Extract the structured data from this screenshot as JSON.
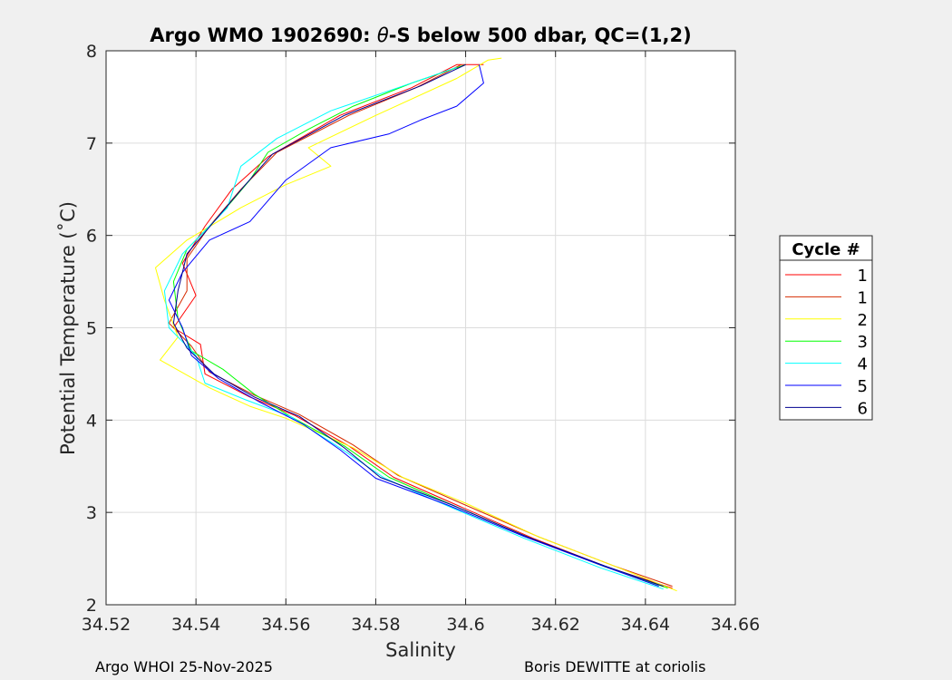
{
  "chart_data": {
    "type": "line",
    "title_prefix": "Argo WMO 1902690: ",
    "title_theta": "θ",
    "title_suffix": "-S below 500 dbar,  QC=(1,2)",
    "xlabel": "Salinity",
    "ylabel": "Potential Temperature (˚C)",
    "xlim": [
      34.52,
      34.66
    ],
    "ylim": [
      2,
      8
    ],
    "xticks": [
      "34.52",
      "34.54",
      "34.56",
      "34.58",
      "34.6",
      "34.62",
      "34.64",
      "34.66"
    ],
    "yticks": [
      "2",
      "3",
      "4",
      "5",
      "6",
      "7",
      "8"
    ],
    "grid": true,
    "legend_title": "Cycle #",
    "legend_placement": "right",
    "series": [
      {
        "name": "1",
        "color": "#ff0000",
        "points": [
          [
            34.646,
            2.18
          ],
          [
            34.632,
            2.4
          ],
          [
            34.615,
            2.72
          ],
          [
            34.598,
            3.08
          ],
          [
            34.584,
            3.38
          ],
          [
            34.574,
            3.72
          ],
          [
            34.562,
            4.05
          ],
          [
            34.552,
            4.25
          ],
          [
            34.542,
            4.5
          ],
          [
            34.541,
            4.82
          ],
          [
            34.535,
            5.0
          ],
          [
            34.54,
            5.35
          ],
          [
            34.537,
            5.7
          ],
          [
            34.542,
            6.1
          ],
          [
            34.548,
            6.5
          ],
          [
            34.556,
            6.85
          ],
          [
            34.572,
            7.3
          ],
          [
            34.588,
            7.6
          ],
          [
            34.598,
            7.85
          ],
          [
            34.604,
            7.85
          ]
        ]
      },
      {
        "name": "1",
        "color": "#d62b00",
        "points": [
          [
            34.646,
            2.2
          ],
          [
            34.633,
            2.42
          ],
          [
            34.616,
            2.74
          ],
          [
            34.599,
            3.1
          ],
          [
            34.585,
            3.4
          ],
          [
            34.575,
            3.73
          ],
          [
            34.563,
            4.06
          ],
          [
            34.553,
            4.27
          ],
          [
            34.543,
            4.52
          ],
          [
            34.539,
            4.8
          ],
          [
            34.534,
            5.05
          ],
          [
            34.538,
            5.4
          ],
          [
            34.538,
            5.75
          ],
          [
            34.543,
            6.1
          ],
          [
            34.55,
            6.5
          ],
          [
            34.558,
            6.9
          ],
          [
            34.574,
            7.3
          ],
          [
            34.589,
            7.6
          ],
          [
            34.599,
            7.85
          ]
        ]
      },
      {
        "name": "2",
        "color": "#ffff00",
        "points": [
          [
            34.647,
            2.15
          ],
          [
            34.633,
            2.42
          ],
          [
            34.616,
            2.74
          ],
          [
            34.6,
            3.1
          ],
          [
            34.586,
            3.38
          ],
          [
            34.575,
            3.7
          ],
          [
            34.56,
            4.02
          ],
          [
            34.552,
            4.15
          ],
          [
            34.543,
            4.35
          ],
          [
            34.532,
            4.65
          ],
          [
            34.536,
            4.9
          ],
          [
            34.533,
            5.3
          ],
          [
            34.531,
            5.65
          ],
          [
            34.538,
            5.95
          ],
          [
            34.55,
            6.3
          ],
          [
            34.56,
            6.55
          ],
          [
            34.57,
            6.75
          ],
          [
            34.565,
            6.95
          ],
          [
            34.58,
            7.3
          ],
          [
            34.598,
            7.7
          ],
          [
            34.605,
            7.9
          ],
          [
            34.608,
            7.92
          ]
        ]
      },
      {
        "name": "3",
        "color": "#00ff00",
        "points": [
          [
            34.645,
            2.18
          ],
          [
            34.631,
            2.41
          ],
          [
            34.614,
            2.73
          ],
          [
            34.597,
            3.08
          ],
          [
            34.583,
            3.38
          ],
          [
            34.573,
            3.72
          ],
          [
            34.561,
            4.04
          ],
          [
            34.553,
            4.28
          ],
          [
            34.546,
            4.55
          ],
          [
            34.539,
            4.75
          ],
          [
            34.536,
            5.1
          ],
          [
            34.535,
            5.5
          ],
          [
            34.538,
            5.85
          ],
          [
            34.545,
            6.2
          ],
          [
            34.552,
            6.6
          ],
          [
            34.556,
            6.9
          ],
          [
            34.565,
            7.15
          ],
          [
            34.575,
            7.4
          ],
          [
            34.588,
            7.65
          ],
          [
            34.6,
            7.85
          ]
        ]
      },
      {
        "name": "4",
        "color": "#00ffff",
        "points": [
          [
            34.644,
            2.17
          ],
          [
            34.63,
            2.4
          ],
          [
            34.613,
            2.72
          ],
          [
            34.596,
            3.07
          ],
          [
            34.582,
            3.37
          ],
          [
            34.572,
            3.7
          ],
          [
            34.561,
            4.04
          ],
          [
            34.551,
            4.22
          ],
          [
            34.542,
            4.4
          ],
          [
            34.54,
            4.7
          ],
          [
            34.534,
            5.0
          ],
          [
            34.533,
            5.4
          ],
          [
            34.537,
            5.8
          ],
          [
            34.547,
            6.3
          ],
          [
            34.55,
            6.75
          ],
          [
            34.558,
            7.05
          ],
          [
            34.57,
            7.35
          ],
          [
            34.585,
            7.6
          ],
          [
            34.598,
            7.82
          ]
        ]
      },
      {
        "name": "5",
        "color": "#0000ff",
        "points": [
          [
            34.643,
            2.2
          ],
          [
            34.63,
            2.43
          ],
          [
            34.613,
            2.74
          ],
          [
            34.596,
            3.08
          ],
          [
            34.58,
            3.37
          ],
          [
            34.572,
            3.68
          ],
          [
            34.564,
            3.95
          ],
          [
            34.554,
            4.2
          ],
          [
            34.545,
            4.45
          ],
          [
            34.539,
            4.7
          ],
          [
            34.537,
            5.0
          ],
          [
            34.534,
            5.3
          ],
          [
            34.537,
            5.6
          ],
          [
            34.543,
            5.95
          ],
          [
            34.552,
            6.15
          ],
          [
            34.56,
            6.6
          ],
          [
            34.57,
            6.95
          ],
          [
            34.583,
            7.1
          ],
          [
            34.59,
            7.25
          ],
          [
            34.598,
            7.4
          ],
          [
            34.604,
            7.65
          ],
          [
            34.603,
            7.85
          ]
        ]
      },
      {
        "name": "6",
        "color": "#00008f",
        "points": [
          [
            34.644,
            2.2
          ],
          [
            34.631,
            2.42
          ],
          [
            34.614,
            2.73
          ],
          [
            34.597,
            3.08
          ],
          [
            34.581,
            3.38
          ],
          [
            34.573,
            3.7
          ],
          [
            34.563,
            4.04
          ],
          [
            34.553,
            4.25
          ],
          [
            34.544,
            4.5
          ],
          [
            34.538,
            4.78
          ],
          [
            34.535,
            5.05
          ],
          [
            34.536,
            5.4
          ],
          [
            34.538,
            5.8
          ],
          [
            34.544,
            6.15
          ],
          [
            34.551,
            6.55
          ],
          [
            34.557,
            6.88
          ],
          [
            34.573,
            7.3
          ],
          [
            34.59,
            7.62
          ],
          [
            34.6,
            7.85
          ]
        ]
      }
    ]
  },
  "footer": {
    "left": "Argo WHOI 25-Nov-2025",
    "right": "Boris DEWITTE at coriolis"
  }
}
